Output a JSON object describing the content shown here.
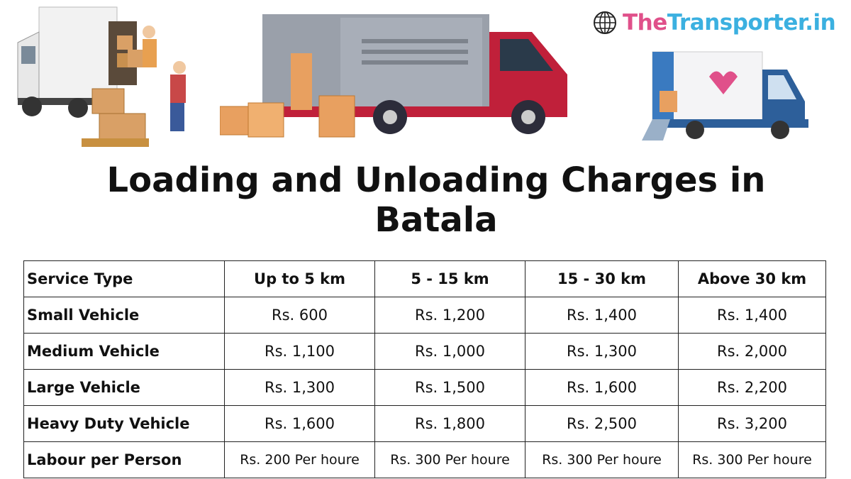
{
  "logo": {
    "the": "The",
    "rest": "Transporter.in",
    "icon": "globe-icon",
    "colors": {
      "the": "#e0508a",
      "rest": "#3bb0e0"
    }
  },
  "title": {
    "line1": "Loading and Unloading Charges in",
    "line2": "Batala"
  },
  "table": {
    "headers": [
      "Service Type",
      "Up to 5 km",
      "5 - 15 km",
      "15 - 30 km",
      "Above 30 km"
    ],
    "rows": [
      [
        "Small Vehicle",
        "Rs. 600",
        "Rs. 1,200",
        "Rs. 1,400",
        "Rs. 1,400"
      ],
      [
        "Medium Vehicle",
        "Rs. 1,100",
        "Rs. 1,000",
        "Rs. 1,300",
        "Rs. 2,000"
      ],
      [
        "Large Vehicle",
        "Rs. 1,300",
        "Rs. 1,500",
        "Rs. 1,600",
        "Rs. 2,200"
      ],
      [
        "Heavy Duty Vehicle",
        "Rs. 1,600",
        "Rs. 1,800",
        "Rs. 2,500",
        "Rs. 3,200"
      ],
      [
        "Labour per Person",
        "Rs. 200 Per houre",
        "Rs. 300 Per houre",
        "Rs. 300 Per houre",
        "Rs. 300 Per houre"
      ]
    ]
  }
}
